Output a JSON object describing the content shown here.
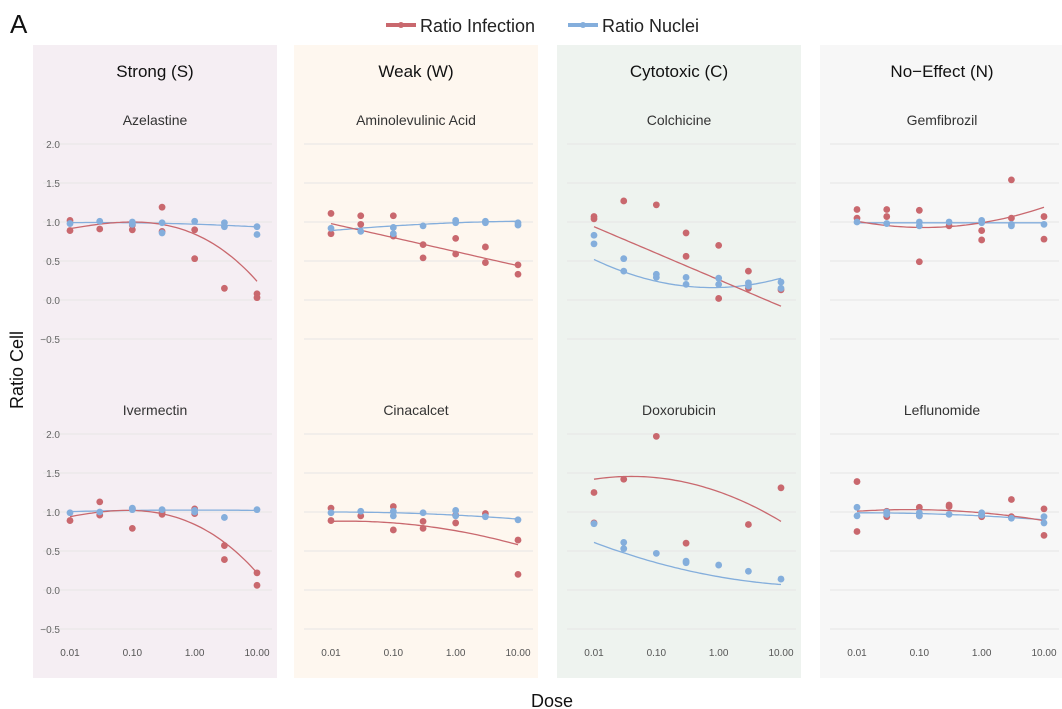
{
  "figure": {
    "panel_letter": "A",
    "y_axis_label": "Ratio Cell",
    "x_axis_label": "Dose"
  },
  "legend": [
    {
      "label": "Ratio Infection",
      "color": "#c9686e"
    },
    {
      "label": "Ratio Nuclei",
      "color": "#84aedc"
    }
  ],
  "categories": [
    {
      "label": "Strong (S)",
      "bg": "#f5eef3"
    },
    {
      "label": "Weak (W)",
      "bg": "#fef7ef"
    },
    {
      "label": "Cytotoxic (C)",
      "bg": "#eef3ef"
    },
    {
      "label": "No−Effect (N)",
      "bg": "#f7f7f7"
    }
  ],
  "chart_data": {
    "type": "scatter",
    "x_scale": "log",
    "xlim": [
      0.01,
      10
    ],
    "ylim": [
      -0.7,
      2.1
    ],
    "x_ticks": [
      0.01,
      0.1,
      1,
      10
    ],
    "x_tick_labels": [
      "0.01",
      "0.10",
      "1.00",
      "10.00"
    ],
    "y_ticks": [
      -0.5,
      0.0,
      0.5,
      1.0,
      1.5,
      2.0
    ],
    "y_tick_labels": [
      "−0.5",
      "0.0",
      "0.5",
      "1.0",
      "1.5",
      "2.0"
    ],
    "grid": true,
    "legend_position": "top",
    "series_names": [
      "Ratio Infection",
      "Ratio Nuclei"
    ],
    "drugs": [
      {
        "name": "Azelastine",
        "category": "Strong (S)",
        "col": 0,
        "row": 0,
        "infection_points": [
          [
            0.01,
            1.02
          ],
          [
            0.01,
            0.89
          ],
          [
            0.03,
            0.91
          ],
          [
            0.1,
            0.9
          ],
          [
            0.1,
            0.96
          ],
          [
            0.3,
            1.19
          ],
          [
            0.3,
            0.88
          ],
          [
            1,
            0.9
          ],
          [
            1,
            0.53
          ],
          [
            3,
            0.15
          ],
          [
            10,
            0.08
          ],
          [
            10,
            0.03
          ]
        ],
        "nuclei_points": [
          [
            0.01,
            0.98
          ],
          [
            0.03,
            1.01
          ],
          [
            0.1,
            1.0
          ],
          [
            0.1,
            0.97
          ],
          [
            0.3,
            0.99
          ],
          [
            0.3,
            0.86
          ],
          [
            1,
            1.01
          ],
          [
            3,
            0.99
          ],
          [
            3,
            0.94
          ],
          [
            10,
            0.94
          ],
          [
            10,
            0.84
          ]
        ],
        "infection_fit": [
          1.0,
          0.0,
          -0.12,
          -0.035
        ],
        "nuclei_fit": [
          0.99,
          -0.01,
          -0.008,
          0.0
        ]
      },
      {
        "name": "Aminolevulinic Acid",
        "category": "Weak (W)",
        "col": 1,
        "row": 0,
        "infection_points": [
          [
            0.01,
            1.11
          ],
          [
            0.01,
            0.85
          ],
          [
            0.03,
            1.08
          ],
          [
            0.03,
            0.97
          ],
          [
            0.1,
            1.08
          ],
          [
            0.1,
            0.82
          ],
          [
            0.3,
            0.71
          ],
          [
            0.3,
            0.54
          ],
          [
            1,
            0.79
          ],
          [
            1,
            0.59
          ],
          [
            3,
            0.68
          ],
          [
            3,
            0.48
          ],
          [
            10,
            0.45
          ],
          [
            10,
            0.33
          ]
        ],
        "nuclei_points": [
          [
            0.01,
            0.92
          ],
          [
            0.03,
            0.88
          ],
          [
            0.1,
            0.93
          ],
          [
            0.1,
            0.85
          ],
          [
            0.3,
            0.95
          ],
          [
            1,
            1.02
          ],
          [
            1,
            0.99
          ],
          [
            3,
            1.01
          ],
          [
            3,
            0.99
          ],
          [
            10,
            0.99
          ],
          [
            10,
            0.96
          ]
        ],
        "infection_fit": [
          0.8,
          -0.18,
          0.0,
          0.0
        ],
        "nuclei_fit": [
          0.95,
          0.05,
          -0.01,
          0.0
        ]
      },
      {
        "name": "Colchicine",
        "category": "Cytotoxic (C)",
        "col": 2,
        "row": 0,
        "infection_points": [
          [
            0.01,
            1.07
          ],
          [
            0.01,
            1.04
          ],
          [
            0.03,
            1.27
          ],
          [
            0.1,
            1.22
          ],
          [
            0.3,
            0.86
          ],
          [
            0.3,
            0.56
          ],
          [
            1,
            0.7
          ],
          [
            1,
            0.02
          ],
          [
            3,
            0.37
          ],
          [
            3,
            0.15
          ],
          [
            10,
            0.13
          ]
        ],
        "nuclei_points": [
          [
            0.01,
            0.83
          ],
          [
            0.01,
            0.72
          ],
          [
            0.03,
            0.53
          ],
          [
            0.03,
            0.37
          ],
          [
            0.1,
            0.33
          ],
          [
            0.1,
            0.29
          ],
          [
            0.3,
            0.29
          ],
          [
            0.3,
            0.2
          ],
          [
            1,
            0.28
          ],
          [
            1,
            0.2
          ],
          [
            3,
            0.22
          ],
          [
            3,
            0.18
          ],
          [
            10,
            0.23
          ],
          [
            10,
            0.15
          ]
        ],
        "infection_fit": [
          0.6,
          -0.34,
          0.0,
          0.0
        ],
        "nuclei_fit": [
          0.24,
          -0.18,
          0.1,
          0.0
        ]
      },
      {
        "name": "Gemfibrozil",
        "category": "No−Effect (N)",
        "col": 3,
        "row": 0,
        "infection_points": [
          [
            0.01,
            1.16
          ],
          [
            0.01,
            1.05
          ],
          [
            0.03,
            1.16
          ],
          [
            0.03,
            1.07
          ],
          [
            0.1,
            1.15
          ],
          [
            0.1,
            0.49
          ],
          [
            0.3,
            0.95
          ],
          [
            1,
            0.89
          ],
          [
            1,
            0.77
          ],
          [
            3,
            1.54
          ],
          [
            3,
            1.05
          ],
          [
            10,
            1.07
          ],
          [
            10,
            0.78
          ]
        ],
        "nuclei_points": [
          [
            0.01,
            1.0
          ],
          [
            0.03,
            0.98
          ],
          [
            0.1,
            1.0
          ],
          [
            0.1,
            0.95
          ],
          [
            0.3,
            1.0
          ],
          [
            1,
            1.02
          ],
          [
            1,
            0.99
          ],
          [
            3,
            0.97
          ],
          [
            3,
            0.95
          ],
          [
            10,
            0.97
          ]
        ],
        "infection_fit": [
          0.93,
          -0.01,
          0.07,
          0.0
        ],
        "nuclei_fit": [
          0.99,
          0.0,
          0.0,
          0.0
        ]
      },
      {
        "name": "Ivermectin",
        "category": "Strong (S)",
        "col": 0,
        "row": 1,
        "infection_points": [
          [
            0.01,
            0.89
          ],
          [
            0.03,
            1.13
          ],
          [
            0.03,
            0.96
          ],
          [
            0.1,
            1.04
          ],
          [
            0.1,
            0.79
          ],
          [
            0.3,
            1.0
          ],
          [
            0.3,
            0.97
          ],
          [
            1,
            1.04
          ],
          [
            1,
            0.98
          ],
          [
            3,
            0.57
          ],
          [
            3,
            0.39
          ],
          [
            10,
            0.22
          ],
          [
            10,
            0.06
          ]
        ],
        "nuclei_points": [
          [
            0.01,
            0.99
          ],
          [
            0.03,
            1.0
          ],
          [
            0.1,
            1.05
          ],
          [
            0.1,
            1.03
          ],
          [
            0.3,
            1.03
          ],
          [
            1,
            1.02
          ],
          [
            1,
            1.0
          ],
          [
            3,
            0.93
          ],
          [
            10,
            1.03
          ]
        ],
        "infection_fit": [
          1.02,
          -0.02,
          -0.13,
          -0.03
        ],
        "nuclei_fit": [
          1.02,
          0.01,
          -0.005,
          0.0
        ]
      },
      {
        "name": "Cinacalcet",
        "category": "Weak (W)",
        "col": 1,
        "row": 1,
        "infection_points": [
          [
            0.01,
            1.05
          ],
          [
            0.01,
            0.89
          ],
          [
            0.03,
            0.95
          ],
          [
            0.1,
            1.07
          ],
          [
            0.1,
            0.77
          ],
          [
            0.3,
            0.88
          ],
          [
            0.3,
            0.79
          ],
          [
            1,
            0.96
          ],
          [
            1,
            0.86
          ],
          [
            3,
            0.98
          ],
          [
            10,
            0.64
          ],
          [
            10,
            0.2
          ]
        ],
        "nuclei_points": [
          [
            0.01,
            0.99
          ],
          [
            0.03,
            1.01
          ],
          [
            0.1,
            1.01
          ],
          [
            0.1,
            0.95
          ],
          [
            0.3,
            0.99
          ],
          [
            1,
            1.02
          ],
          [
            1,
            0.95
          ],
          [
            3,
            0.94
          ],
          [
            10,
            0.9
          ]
        ],
        "infection_fit": [
          0.86,
          -0.06,
          -0.04,
          0.0
        ],
        "nuclei_fit": [
          0.99,
          -0.02,
          -0.01,
          0.0
        ]
      },
      {
        "name": "Doxorubicin",
        "category": "Cytotoxic (C)",
        "col": 2,
        "row": 1,
        "infection_points": [
          [
            0.01,
            1.25
          ],
          [
            0.01,
            0.86
          ],
          [
            0.03,
            1.42
          ],
          [
            0.1,
            1.97
          ],
          [
            0.3,
            0.6
          ],
          [
            3,
            0.84
          ],
          [
            10,
            1.31
          ]
        ],
        "nuclei_points": [
          [
            0.01,
            0.85
          ],
          [
            0.03,
            0.61
          ],
          [
            0.03,
            0.53
          ],
          [
            0.1,
            0.47
          ],
          [
            0.3,
            0.37
          ],
          [
            0.3,
            0.35
          ],
          [
            1,
            0.32
          ],
          [
            3,
            0.24
          ],
          [
            10,
            0.14
          ]
        ],
        "infection_fit": [
          1.44,
          -0.08,
          -0.1,
          0.0
        ],
        "nuclei_fit": [
          0.35,
          -0.22,
          0.04,
          0.0
        ]
      },
      {
        "name": "Leflunomide",
        "category": "No−Effect (N)",
        "col": 3,
        "row": 1,
        "infection_points": [
          [
            0.01,
            1.39
          ],
          [
            0.01,
            0.75
          ],
          [
            0.03,
            1.01
          ],
          [
            0.03,
            0.94
          ],
          [
            0.1,
            1.06
          ],
          [
            0.1,
            0.95
          ],
          [
            0.3,
            1.09
          ],
          [
            0.3,
            1.07
          ],
          [
            1,
            0.97
          ],
          [
            1,
            0.94
          ],
          [
            3,
            1.16
          ],
          [
            3,
            0.94
          ],
          [
            10,
            1.04
          ],
          [
            10,
            0.7
          ]
        ],
        "nuclei_points": [
          [
            0.01,
            1.06
          ],
          [
            0.01,
            0.95
          ],
          [
            0.03,
            1.0
          ],
          [
            0.03,
            0.97
          ],
          [
            0.1,
            0.99
          ],
          [
            0.1,
            0.95
          ],
          [
            0.3,
            0.97
          ],
          [
            1,
            0.99
          ],
          [
            1,
            0.96
          ],
          [
            3,
            0.92
          ],
          [
            10,
            0.94
          ],
          [
            10,
            0.86
          ]
        ],
        "infection_fit": [
          1.03,
          -0.01,
          -0.03,
          0.0
        ],
        "nuclei_fit": [
          0.98,
          -0.02,
          -0.01,
          0.0
        ]
      }
    ]
  }
}
